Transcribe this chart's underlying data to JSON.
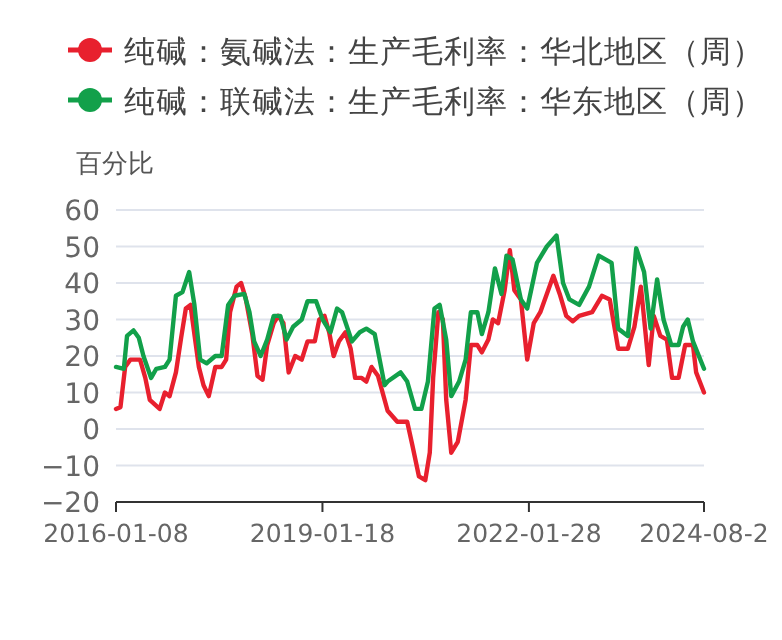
{
  "chart_data": {
    "type": "line",
    "ylabel": "百分比",
    "legend": "top",
    "grid": "y",
    "line_style": "solid",
    "marker": "none",
    "xlim": [
      "2016-01-08",
      "2024-08-23"
    ],
    "xticks": [
      "2016-01-08",
      "2019-01-18",
      "2022-01-28",
      {
        "value": "2024-08-23",
        "label": "2024-08-2"
      }
    ],
    "ylim": [
      -20,
      60
    ],
    "yticks": [
      -20,
      -10,
      0,
      10,
      20,
      30,
      40,
      50,
      60
    ],
    "series": [
      {
        "name": "纯碱：氨碱法：生产毛利率：华北地区（周）",
        "color": "#e8202e",
        "x": [
          "2016-01-08",
          "2016-02-01",
          "2016-02-26",
          "2016-03-25",
          "2016-05-16",
          "2016-06-13",
          "2016-07-07",
          "2016-08-29",
          "2016-09-26",
          "2016-10-21",
          "2016-11-24",
          "2016-12-22",
          "2017-01-16",
          "2017-02-10",
          "2017-03-03",
          "2017-03-27",
          "2017-04-21",
          "2017-05-19",
          "2017-06-23",
          "2017-07-27",
          "2017-08-20",
          "2017-09-10",
          "2017-10-15",
          "2017-11-08",
          "2017-12-02",
          "2018-01-07",
          "2018-02-04",
          "2018-03-03",
          "2018-03-28",
          "2018-05-02",
          "2018-05-26",
          "2018-06-23",
          "2018-07-21",
          "2018-08-25",
          "2018-09-29",
          "2018-10-30",
          "2018-12-08",
          "2019-01-01",
          "2019-01-29",
          "2019-02-23",
          "2019-03-19",
          "2019-04-16",
          "2019-05-21",
          "2019-06-18",
          "2019-07-12",
          "2019-08-16",
          "2019-09-10",
          "2019-10-08",
          "2019-11-12",
          "2020-01-02",
          "2020-02-23",
          "2020-04-16",
          "2020-05-14",
          "2020-06-18",
          "2020-07-22",
          "2020-08-15",
          "2020-09-02",
          "2020-09-30",
          "2020-10-24",
          "2020-11-11",
          "2020-12-08",
          "2021-01-12",
          "2021-02-23",
          "2021-03-23",
          "2021-04-27",
          "2021-05-21",
          "2021-06-25",
          "2021-07-19",
          "2021-08-16",
          "2021-09-20",
          "2021-10-18",
          "2021-11-11",
          "2021-12-16",
          "2022-01-19",
          "2022-02-23",
          "2022-03-30",
          "2022-06-08",
          "2022-07-12",
          "2022-08-16",
          "2022-09-20",
          "2022-10-24",
          "2023-01-02",
          "2023-02-23",
          "2023-04-06",
          "2023-05-21",
          "2023-07-12",
          "2023-08-16",
          "2023-09-20",
          "2023-11-01",
          "2023-11-28",
          "2024-01-02",
          "2024-02-06",
          "2024-03-05",
          "2024-04-09",
          "2024-05-14",
          "2024-06-25",
          "2024-07-12",
          "2024-08-23"
        ],
        "values": [
          5.5,
          6,
          17,
          19,
          19,
          14,
          8,
          5.5,
          10,
          9,
          15.5,
          25,
          33,
          34,
          26,
          17,
          12,
          9,
          17,
          17,
          19,
          32,
          39,
          40,
          36,
          26,
          14.5,
          13.5,
          23,
          29,
          31,
          29,
          15.5,
          20,
          19,
          24,
          24,
          30,
          31,
          26.5,
          20,
          24,
          26.5,
          22,
          14,
          14,
          13,
          17,
          14.5,
          5,
          2,
          2,
          -4.5,
          -13,
          -14,
          -6.5,
          14,
          32,
          30,
          8,
          -6.5,
          -3.5,
          8,
          23,
          23,
          21,
          24.5,
          30,
          29,
          38,
          49,
          38,
          35.5,
          19,
          29,
          32,
          42,
          37,
          31,
          29.5,
          31,
          32,
          36.5,
          35.5,
          22,
          22,
          28,
          39,
          17.5,
          31,
          25.5,
          24.5,
          14,
          14,
          23,
          23,
          15.5,
          10
        ]
      },
      {
        "name": "纯碱：联碱法：生产毛利率：华东地区（周）",
        "color": "#12a04a",
        "x": [
          "2016-01-08",
          "2016-02-19",
          "2016-03-07",
          "2016-04-11",
          "2016-05-09",
          "2016-06-03",
          "2016-07-14",
          "2016-08-11",
          "2016-09-26",
          "2016-10-21",
          "2016-11-24",
          "2016-12-29",
          "2017-02-03",
          "2017-03-03",
          "2017-04-03",
          "2017-05-08",
          "2017-06-23",
          "2017-07-27",
          "2017-08-31",
          "2017-10-04",
          "2017-11-25",
          "2017-12-23",
          "2018-01-17",
          "2018-02-21",
          "2018-03-28",
          "2018-05-02",
          "2018-06-06",
          "2018-07-10",
          "2018-08-14",
          "2018-09-29",
          "2018-10-30",
          "2018-12-15",
          "2019-01-19",
          "2019-03-02",
          "2019-04-06",
          "2019-05-03",
          "2019-06-25",
          "2019-08-06",
          "2019-09-10",
          "2019-10-25",
          "2019-12-17",
          "2020-01-02",
          "2020-03-12",
          "2020-04-16",
          "2020-05-28",
          "2020-07-01",
          "2020-08-05",
          "2020-09-09",
          "2020-10-07",
          "2020-11-11",
          "2020-12-08",
          "2021-01-19",
          "2021-02-23",
          "2021-03-23",
          "2021-04-27",
          "2021-05-21",
          "2021-06-25",
          "2021-07-30",
          "2021-09-03",
          "2021-09-30",
          "2021-11-01",
          "2021-12-16",
          "2022-01-19",
          "2022-03-12",
          "2022-05-04",
          "2022-06-25",
          "2022-07-30",
          "2022-09-02",
          "2022-10-24",
          "2022-12-16",
          "2023-02-06",
          "2023-04-16",
          "2023-05-21",
          "2023-07-12",
          "2023-08-26",
          "2023-10-07",
          "2023-11-11",
          "2023-12-16",
          "2024-01-19",
          "2024-03-01",
          "2024-04-09",
          "2024-05-03",
          "2024-05-28",
          "2024-06-25",
          "2024-08-23"
        ],
        "values": [
          17,
          16.5,
          25.5,
          27,
          25,
          20,
          14,
          16.5,
          17,
          19,
          36.5,
          37.5,
          43,
          34,
          19,
          18,
          20,
          20,
          34,
          36.5,
          37,
          32,
          24,
          20,
          24.5,
          31,
          31,
          24.5,
          28,
          30,
          35,
          35,
          30,
          26.5,
          33,
          32,
          24,
          26.5,
          27.5,
          26,
          12,
          13,
          15.5,
          13,
          5.5,
          5.5,
          13,
          33,
          34,
          24.5,
          9,
          13,
          19,
          32,
          32,
          26,
          32,
          44,
          37,
          47.5,
          46.5,
          35.5,
          33,
          45.5,
          50,
          53,
          40,
          35.5,
          34,
          39,
          47.5,
          45.5,
          27.5,
          25.5,
          49.5,
          43,
          27.5,
          41,
          30,
          23,
          23,
          28,
          30,
          24,
          16.5
        ]
      }
    ]
  }
}
